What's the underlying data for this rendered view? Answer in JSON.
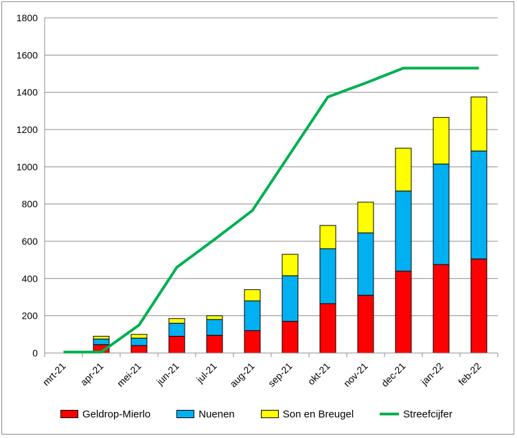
{
  "chart_data": {
    "type": "bar",
    "stacked": true,
    "categories": [
      "mrt-21",
      "apr-21",
      "mei-21",
      "jun-21",
      "jul-21",
      "aug-21",
      "sep-21",
      "okt-21",
      "nov-21",
      "dec-21",
      "jan-22",
      "feb-22"
    ],
    "series": [
      {
        "name": "Geldrop-Mierlo",
        "color": "#ff0000",
        "values": [
          0,
          45,
          40,
          90,
          95,
          120,
          170,
          265,
          310,
          440,
          475,
          505
        ]
      },
      {
        "name": "Nuenen",
        "color": "#00b0f0",
        "values": [
          0,
          30,
          40,
          70,
          85,
          160,
          245,
          295,
          335,
          430,
          540,
          580
        ]
      },
      {
        "name": "Son en Breugel",
        "color": "#ffff00",
        "values": [
          0,
          15,
          20,
          25,
          20,
          60,
          115,
          125,
          165,
          230,
          250,
          290
        ]
      }
    ],
    "line_series": {
      "name": "Streefcijfer",
      "color": "#00b050",
      "values": [
        5,
        5,
        150,
        460,
        610,
        765,
        1070,
        1375,
        1450,
        1530,
        1530,
        1530
      ]
    },
    "yticks": [
      "0",
      "200",
      "400",
      "600",
      "800",
      "1000",
      "1200",
      "1400",
      "1600",
      "1800"
    ],
    "ylim": [
      0,
      1800
    ],
    "grid": true,
    "legend_position": "bottom"
  }
}
